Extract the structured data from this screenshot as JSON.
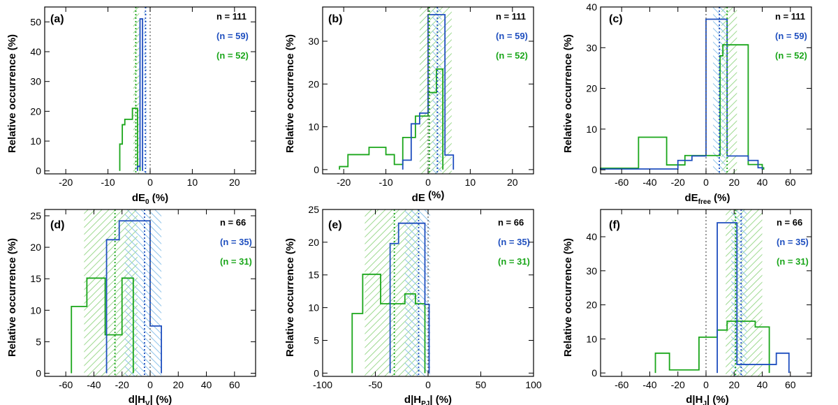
{
  "colors": {
    "all": "#000000",
    "blue": "#1f4fbf",
    "green": "#1aa61a",
    "blue_hatch": "#8ec3ea",
    "green_hatch": "#9ed990",
    "zero_line": "#555555"
  },
  "chart_data": [
    {
      "type": "histogram",
      "panel_label": "(a)",
      "ylabel": "Relative occurrence (%)",
      "xlabel_main": "dE",
      "xlabel_sub": "0",
      "xlabel_suffix": " (%)",
      "xlim": [
        -25,
        25
      ],
      "ylim": [
        -1,
        55
      ],
      "xticks": [
        -20,
        -10,
        0,
        10,
        20
      ],
      "yticks": [
        0,
        10,
        20,
        30,
        40,
        50
      ],
      "n_all": "n = 111",
      "n_blue": "(n = 59)",
      "n_green": "(n = 52)",
      "blue_hist": {
        "edges": [
          -3,
          -2.4,
          -1.8
        ],
        "values": [
          1.5,
          51
        ]
      },
      "green_hist": {
        "edges": [
          -7.2,
          -6.6,
          -6.0,
          -4.2,
          -3.0,
          -2.4
        ],
        "values": [
          9,
          15.5,
          17.3,
          21,
          1.5
        ]
      },
      "zero_line": 0,
      "blue_median": -1.1,
      "blue_band": [
        -1.5,
        -0.8
      ],
      "green_median": -3.4,
      "green_band": [
        -4.0,
        -2.6
      ]
    },
    {
      "type": "histogram",
      "panel_label": "(b)",
      "ylabel": "Relative occurrence (%)",
      "xlabel_main": "dE",
      "xlabel_sub": "",
      "xlabel_suffix": " (%)",
      "xlim": [
        -25,
        25
      ],
      "ylim": [
        -1,
        38
      ],
      "xticks": [
        -20,
        -10,
        0,
        10,
        20
      ],
      "yticks": [
        0,
        10,
        20,
        30
      ],
      "n_all": "n = 111",
      "n_blue": "(n = 59)",
      "n_green": "(n = 52)",
      "blue_hist": {
        "edges": [
          -6,
          -4,
          -2,
          0,
          4,
          6
        ],
        "values": [
          2.2,
          10.7,
          13.2,
          36.2,
          3.4
        ]
      },
      "green_hist": {
        "edges": [
          -21,
          -19,
          -14,
          -10,
          -8,
          -6,
          -3,
          0,
          2,
          3.5
        ],
        "values": [
          0.7,
          3.5,
          5.2,
          3.5,
          1.2,
          7.5,
          12.5,
          18,
          23.5
        ]
      },
      "zero_line": 0,
      "blue_median": 2.2,
      "blue_band": [
        1.0,
        3.2
      ],
      "green_median": 0.3,
      "green_band": [
        -2.0,
        5.6
      ]
    },
    {
      "type": "histogram",
      "panel_label": "(c)",
      "ylabel": "Relative occurrence (%)",
      "xlabel_main": "dE",
      "xlabel_sub": "free",
      "xlabel_suffix": " (%)",
      "xlim": [
        -75,
        75
      ],
      "ylim": [
        -1,
        40
      ],
      "xticks": [
        -60,
        -40,
        -20,
        0,
        20,
        40,
        60
      ],
      "yticks": [
        0,
        10,
        20,
        30,
        40
      ],
      "n_all": "n = 111",
      "n_blue": "(n = 59)",
      "n_green": "(n = 52)",
      "blue_hist": {
        "edges": [
          -75,
          -20,
          -10,
          0,
          15,
          30,
          37,
          40
        ],
        "values": [
          0.2,
          2.3,
          3.4,
          37,
          3.4,
          2.3,
          0.5
        ]
      },
      "green_hist": {
        "edges": [
          -75,
          -48,
          -28,
          -15,
          10,
          12,
          30,
          40,
          41
        ],
        "values": [
          0.4,
          8,
          1.2,
          3.5,
          28,
          30.7,
          1.3,
          0.5
        ]
      },
      "zero_line": 0,
      "blue_median": 9.5,
      "blue_band": [
        5,
        14
      ],
      "green_median": 15,
      "green_band": [
        11,
        22
      ]
    },
    {
      "type": "histogram",
      "panel_label": "(d)",
      "ylabel": "Relative occurrence (%)",
      "xlabel_main": "d|H",
      "xlabel_sub": "V",
      "xlabel_suffix": "| (%)",
      "xlim": [
        -75,
        75
      ],
      "ylim": [
        -0.5,
        26
      ],
      "xticks": [
        -60,
        -40,
        -20,
        0,
        20,
        40,
        60
      ],
      "yticks": [
        0,
        5,
        10,
        15,
        20,
        25
      ],
      "n_all": "n = 66",
      "n_blue": "(n = 35)",
      "n_green": "(n = 31)",
      "blue_hist": {
        "edges": [
          -31,
          -22,
          -12,
          0,
          8
        ],
        "values": [
          21.2,
          24.2,
          24.2,
          7.5
        ]
      },
      "green_hist": {
        "edges": [
          -56,
          -45,
          -32,
          -20,
          -12
        ],
        "values": [
          10.6,
          15.1,
          6.1,
          15.1
        ]
      },
      "zero_line": 0,
      "blue_median": -4,
      "blue_band": [
        -18,
        8
      ],
      "green_median": -25,
      "green_band": [
        -47,
        -9
      ]
    },
    {
      "type": "histogram",
      "panel_label": "(e)",
      "ylabel": "Relative occurrence (%)",
      "xlabel_main": "d|H",
      "xlabel_sub": "PJ",
      "xlabel_suffix": "| (%)",
      "xlim": [
        -100,
        100
      ],
      "ylim": [
        -0.5,
        25
      ],
      "xticks": [
        -100,
        -50,
        0,
        50,
        100
      ],
      "yticks": [
        0,
        5,
        10,
        15,
        20,
        25
      ],
      "n_all": "n = 66",
      "n_blue": "(n = 35)",
      "n_green": "(n = 31)",
      "blue_hist": {
        "edges": [
          -36,
          -28,
          -20,
          -3,
          1
        ],
        "values": [
          19.8,
          22.9,
          22.9,
          10.5
        ]
      },
      "green_hist": {
        "edges": [
          -72,
          -62,
          -45,
          -22,
          -12,
          -3
        ],
        "values": [
          9.1,
          15.1,
          10.6,
          12.1,
          10.6
        ]
      },
      "zero_line": 0,
      "blue_median": -9,
      "blue_band": [
        -22,
        2
      ],
      "green_median": -32,
      "green_band": [
        -60,
        -8
      ]
    },
    {
      "type": "histogram",
      "panel_label": "(f)",
      "ylabel": "Relative occurrence (%)",
      "xlabel_main": "d|H",
      "xlabel_sub": "J",
      "xlabel_suffix": "| (%)",
      "xlim": [
        -75,
        75
      ],
      "ylim": [
        -1,
        48
      ],
      "xticks": [
        -60,
        -40,
        -20,
        0,
        20,
        40,
        60
      ],
      "yticks": [
        0,
        10,
        20,
        30,
        40
      ],
      "n_all": "n = 66",
      "n_blue": "(n = 35)",
      "n_green": "(n = 31)",
      "blue_hist": {
        "edges": [
          8,
          22,
          50,
          59
        ],
        "values": [
          44.1,
          2.5,
          5.8
        ]
      },
      "green_hist": {
        "edges": [
          -36,
          -26,
          -5,
          8,
          15,
          35,
          45
        ],
        "values": [
          5.8,
          0.9,
          10.5,
          12.6,
          15.2,
          13.5
        ]
      },
      "zero_line": 0,
      "blue_median": 25,
      "blue_band": [
        18,
        29
      ],
      "green_median": 21,
      "green_band": [
        14,
        40
      ]
    }
  ]
}
